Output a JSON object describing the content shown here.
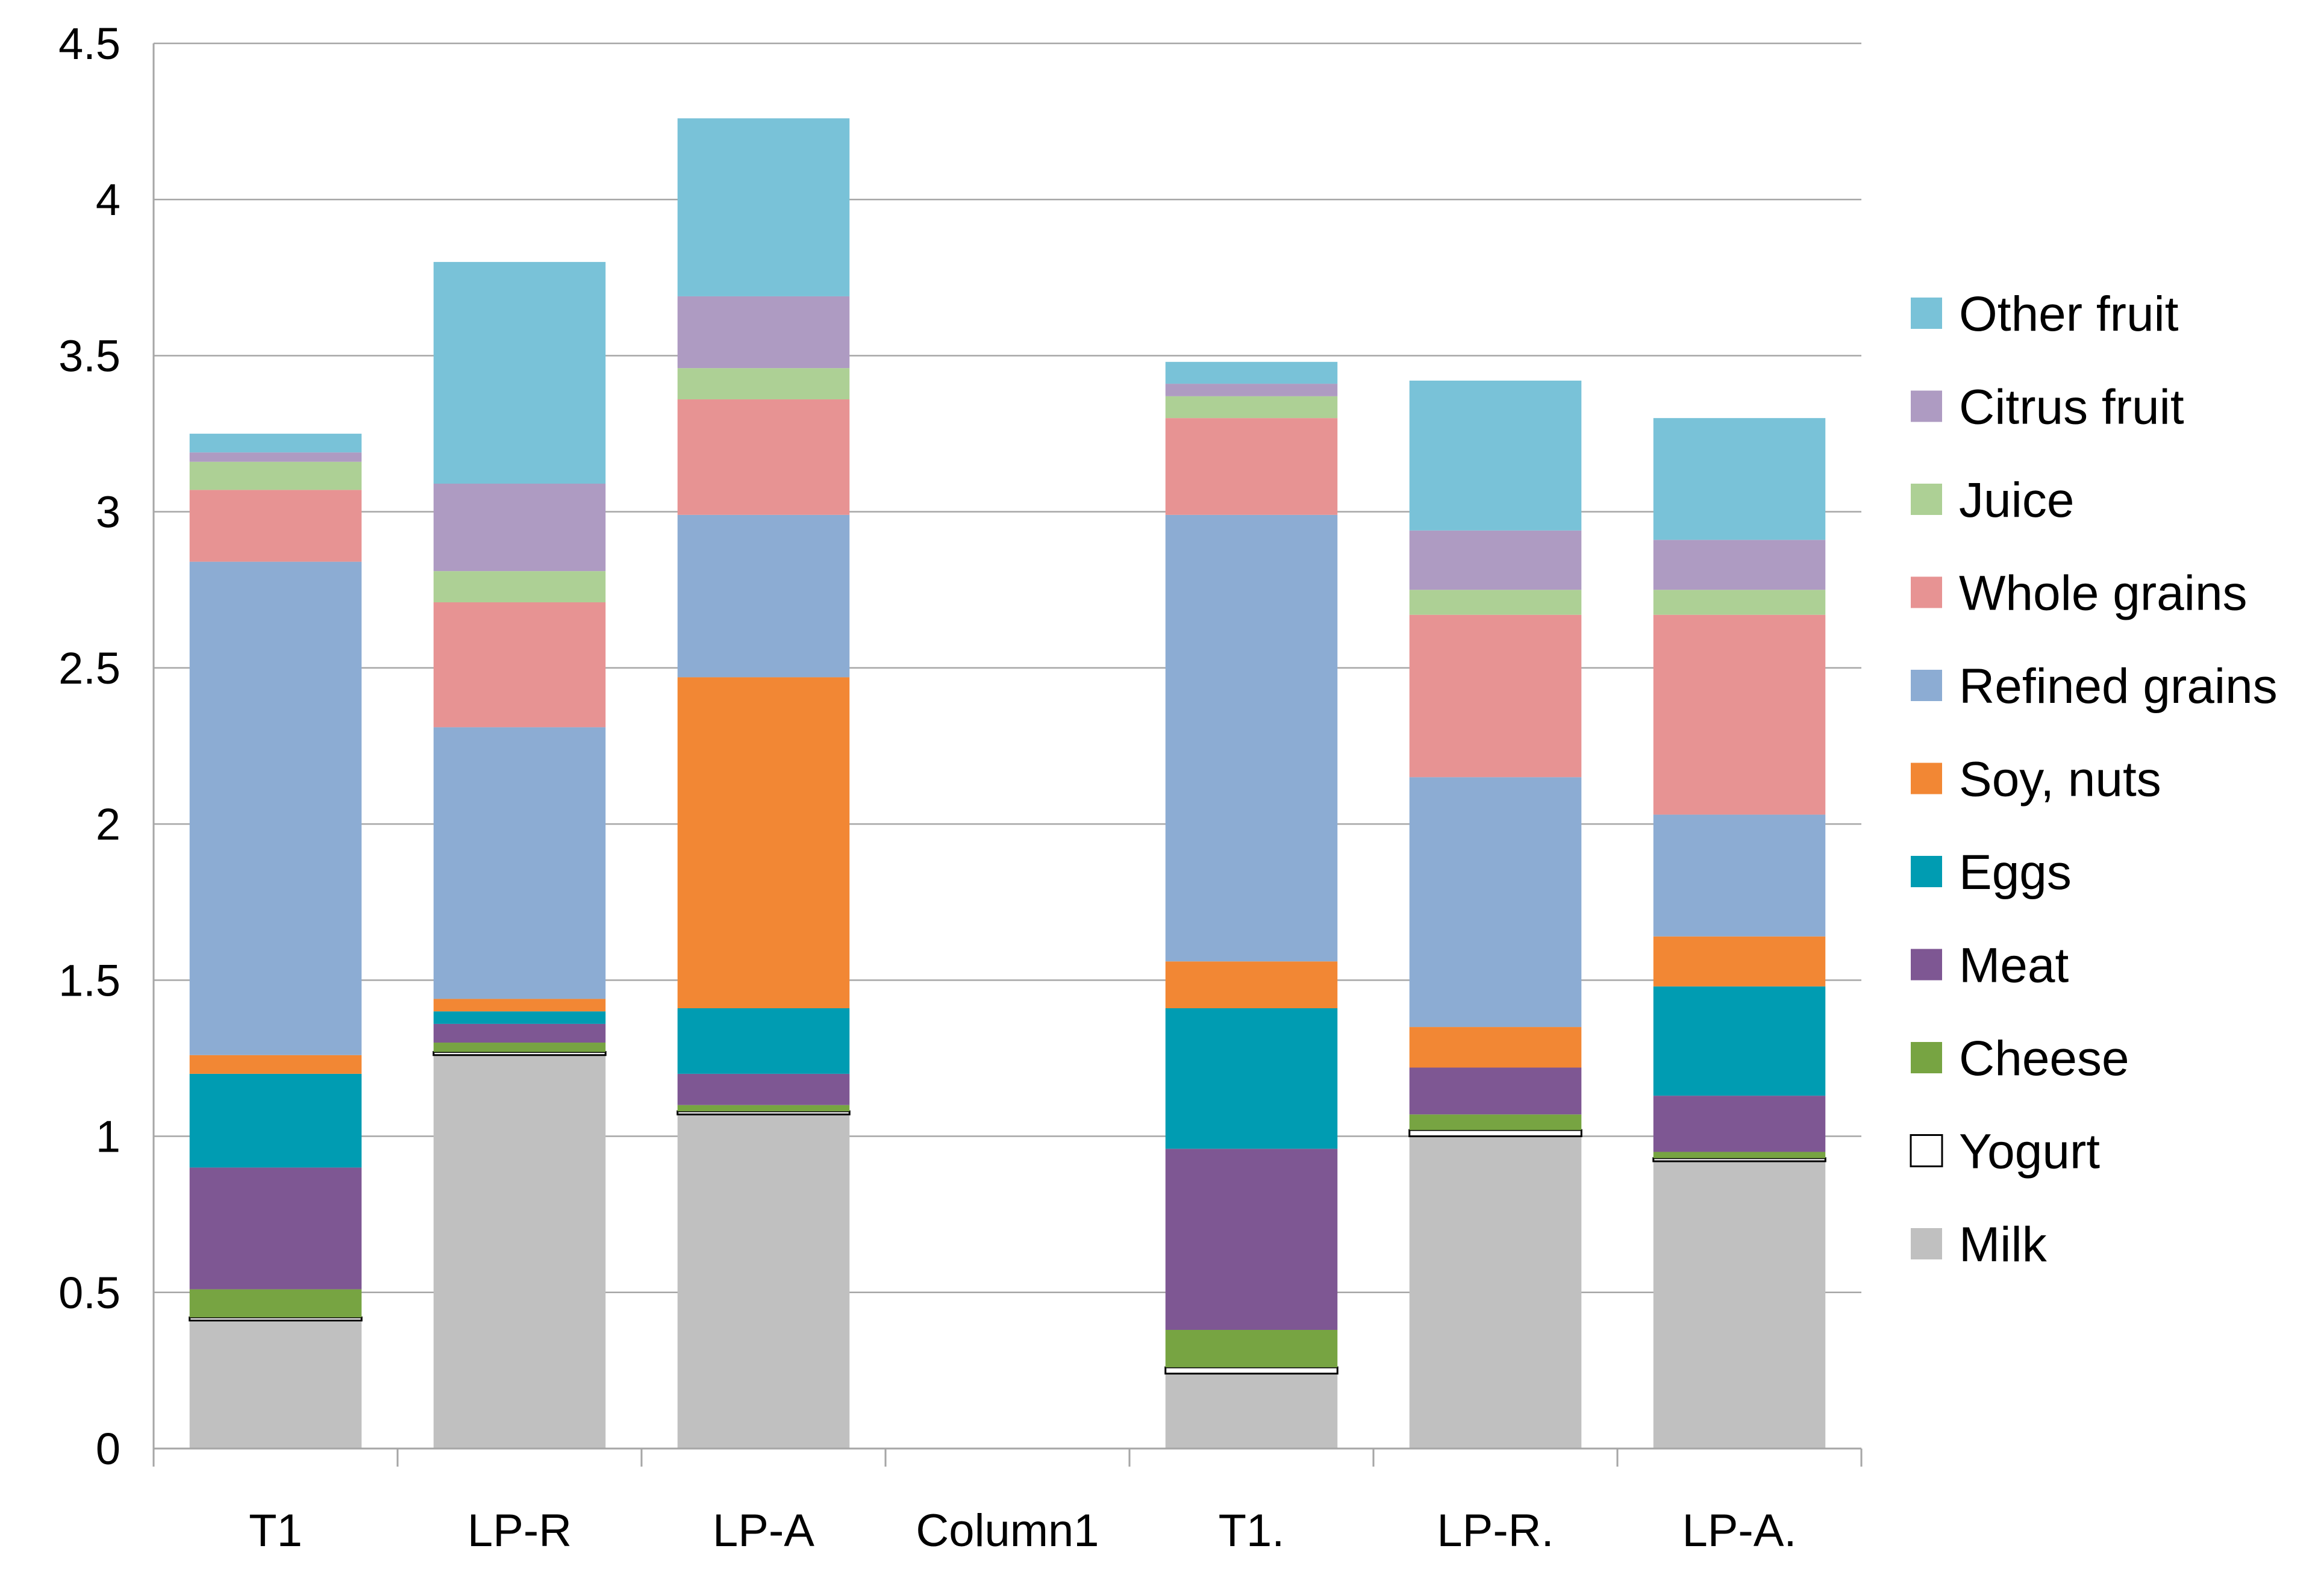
{
  "chart_data": {
    "type": "bar",
    "stacked": true,
    "categories": [
      "T1",
      "LP-R",
      "LP-A",
      "Column1",
      "T1.",
      "LP-R.",
      "LP-A."
    ],
    "ylim": [
      0,
      4.5
    ],
    "yticks": [
      "0",
      "0.5",
      "1",
      "1.5",
      "2",
      "2.5",
      "3",
      "3.5",
      "4",
      "4.5"
    ],
    "grid": true,
    "legend_position": "right",
    "series": [
      {
        "name": "Milk",
        "color": "#C0C0C0",
        "values": [
          0.41,
          1.26,
          1.07,
          0,
          0.24,
          1.0,
          0.92
        ]
      },
      {
        "name": "Yogurt",
        "color": "#FFFFFF",
        "values": [
          0.01,
          0.01,
          0.01,
          0,
          0.02,
          0.02,
          0.01
        ]
      },
      {
        "name": "Cheese",
        "color": "#77A442",
        "values": [
          0.09,
          0.03,
          0.02,
          0,
          0.12,
          0.05,
          0.02
        ]
      },
      {
        "name": "Meat",
        "color": "#7E5793",
        "values": [
          0.39,
          0.06,
          0.1,
          0,
          0.58,
          0.15,
          0.18
        ]
      },
      {
        "name": "Eggs",
        "color": "#009CB2",
        "values": [
          0.3,
          0.04,
          0.21,
          0,
          0.45,
          0.0,
          0.35
        ]
      },
      {
        "name": "Soy, nuts",
        "color": "#F28734",
        "values": [
          0.06,
          0.04,
          1.06,
          0,
          0.15,
          0.13,
          0.16
        ]
      },
      {
        "name": "Refined grains",
        "color": "#8CACD3",
        "values": [
          1.58,
          0.87,
          0.52,
          0,
          1.43,
          0.8,
          0.39
        ]
      },
      {
        "name": "Whole grains",
        "color": "#E79393",
        "values": [
          0.23,
          0.4,
          0.37,
          0,
          0.31,
          0.52,
          0.64
        ]
      },
      {
        "name": "Juice",
        "color": "#ADD095",
        "values": [
          0.09,
          0.1,
          0.1,
          0,
          0.07,
          0.08,
          0.08
        ]
      },
      {
        "name": "Citrus fruit",
        "color": "#AE9BC2",
        "values": [
          0.03,
          0.28,
          0.23,
          0,
          0.04,
          0.19,
          0.16
        ]
      },
      {
        "name": "Other fruit",
        "color": "#79C2D8",
        "values": [
          0.06,
          0.71,
          0.57,
          0,
          0.07,
          0.48,
          0.39
        ]
      }
    ]
  }
}
